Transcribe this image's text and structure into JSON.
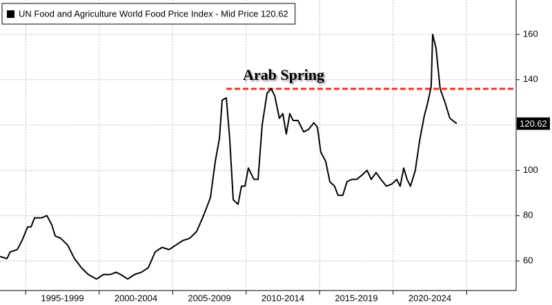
{
  "chart_data": {
    "type": "line",
    "series": [
      {
        "name": "UN Food and Agriculture World Food Price Index - Mid Price 120.62",
        "color": "#000000",
        "x": [
          1993.25,
          1993.72,
          1993.95,
          1994.42,
          1994.75,
          1995.13,
          1995.36,
          1995.6,
          1996.07,
          1996.44,
          1996.77,
          1997.01,
          1997.38,
          1997.85,
          1998.32,
          1998.79,
          1999.26,
          1999.82,
          2000.29,
          2000.76,
          2001.14,
          2001.47,
          2001.94,
          2002.4,
          2002.87,
          2003.34,
          2003.81,
          2004.28,
          2004.75,
          2005.22,
          2005.69,
          2006.16,
          2006.63,
          2007.1,
          2007.57,
          2007.9,
          2008.18,
          2008.37,
          2008.65,
          2008.88,
          2009.12,
          2009.45,
          2009.68,
          2009.92,
          2010.15,
          2010.53,
          2010.81,
          2011.09,
          2011.42,
          2011.7,
          2011.94,
          2012.26,
          2012.5,
          2012.73,
          2012.97,
          2013.2,
          2013.53,
          2013.91,
          2014.24,
          2014.61,
          2014.85,
          2015.08,
          2015.41,
          2015.69,
          2016.02,
          2016.25,
          2016.58,
          2016.86,
          2017.19,
          2017.52,
          2017.9,
          2018.23,
          2018.51,
          2018.84,
          2019.17,
          2019.54,
          2019.92,
          2020.25,
          2020.48,
          2020.72,
          2020.95,
          2021.18,
          2021.51,
          2021.8,
          2022.12,
          2022.36,
          2022.59,
          2022.69,
          2022.92,
          2023.2,
          2023.53,
          2023.86,
          2024.33
        ],
        "values": [
          62,
          61,
          64,
          65,
          69,
          75,
          75,
          79,
          79,
          80,
          76,
          71,
          70,
          67,
          61,
          57,
          54,
          52,
          54,
          54,
          55,
          54,
          52,
          54,
          55,
          57,
          64,
          66,
          65,
          67,
          69,
          70,
          73,
          80,
          88,
          104,
          114,
          131,
          132,
          114,
          87,
          85,
          93,
          93,
          101,
          96,
          96,
          120,
          134,
          136,
          133,
          123,
          125,
          116,
          125,
          122,
          122,
          117,
          118,
          121,
          119,
          108,
          104,
          95,
          93,
          89,
          89,
          95,
          96,
          96,
          98,
          100,
          96,
          99,
          96,
          93,
          94,
          96,
          93,
          101,
          96,
          93,
          100,
          113,
          124,
          130,
          137,
          160,
          154,
          136,
          130,
          123,
          120.62
        ]
      }
    ],
    "annotation": {
      "text": "Arab Spring",
      "y": 136,
      "x_start": 2008.65,
      "color": "#e8332a"
    },
    "xlim": [
      1993.25,
      2028.37
    ],
    "xticks": [
      {
        "value": 1997.5,
        "label": "1995-1999"
      },
      {
        "value": 2002.5,
        "label": "2000-2004"
      },
      {
        "value": 2007.5,
        "label": "2005-2009"
      },
      {
        "value": 2012.5,
        "label": "2010-2014"
      },
      {
        "value": 2017.5,
        "label": "2015-2019"
      },
      {
        "value": 2022.5,
        "label": "2020-2024"
      }
    ],
    "xgrid": [
      1995,
      2000,
      2005,
      2010,
      2015,
      2020,
      2025
    ],
    "ylim": [
      46.93,
      175.2
    ],
    "yticks": [
      60,
      80,
      100,
      120,
      140,
      160
    ],
    "grid": true,
    "legend": "upper left"
  }
}
